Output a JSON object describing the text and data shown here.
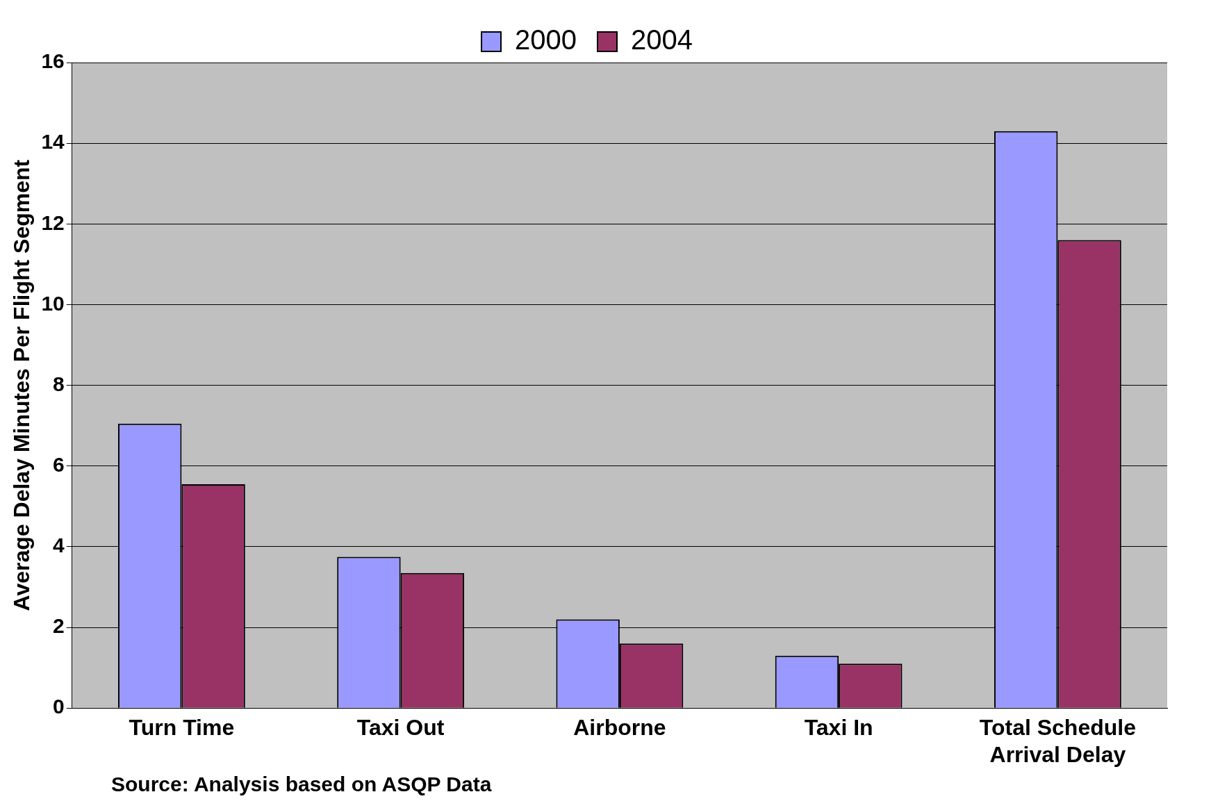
{
  "chart_data": {
    "type": "bar",
    "ylabel": "Average Delay Minutes Per Flight Segment",
    "categories": [
      "Turn Time",
      "Taxi Out",
      "Airborne",
      "Taxi In",
      "Total Schedule Arrival Delay"
    ],
    "series": [
      {
        "name": "2000",
        "color": "#9999ff",
        "values": [
          7.05,
          3.75,
          2.2,
          1.3,
          14.3
        ]
      },
      {
        "name": "2004",
        "color": "#993366",
        "values": [
          5.55,
          3.35,
          1.6,
          1.1,
          11.6
        ]
      }
    ],
    "ylim": [
      0,
      16
    ],
    "yticks": [
      0,
      2,
      4,
      6,
      8,
      10,
      12,
      14,
      16
    ],
    "grid": "y",
    "legend": "top",
    "annotations": [
      "Source: Analysis based on ASQP Data"
    ]
  }
}
